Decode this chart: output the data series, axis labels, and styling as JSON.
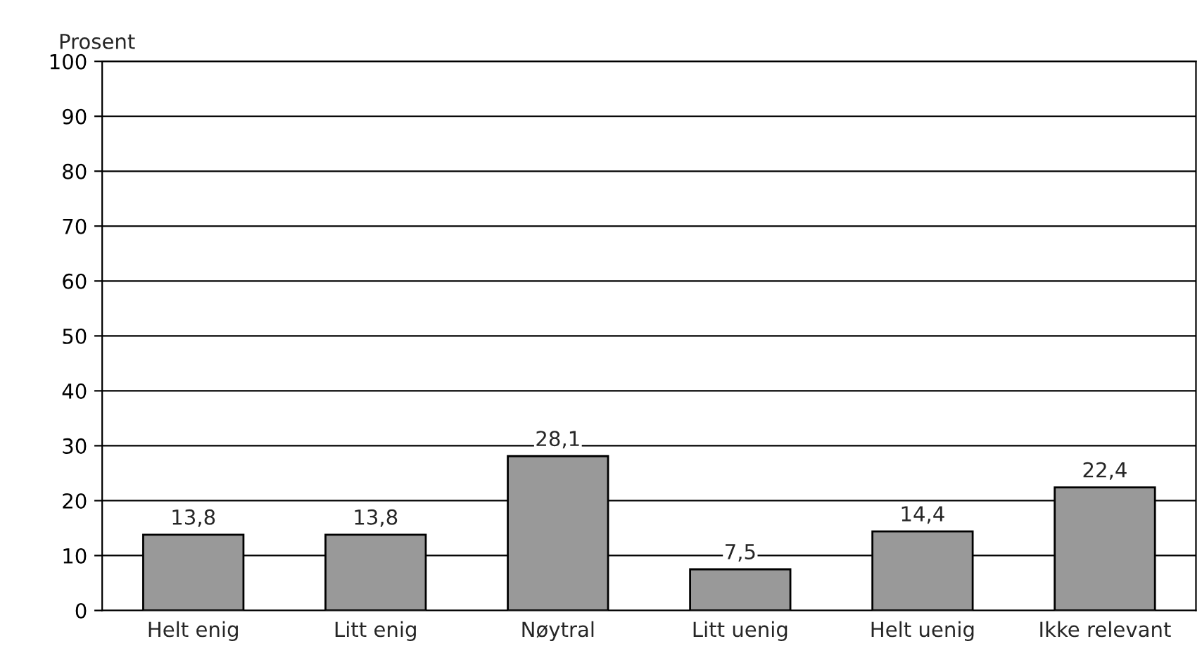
{
  "chart_data": {
    "type": "bar",
    "ylabel": "Prosent",
    "categories": [
      "Helt enig",
      "Litt enig",
      "Nøytral",
      "Litt uenig",
      "Helt uenig",
      "Ikke relevant"
    ],
    "values": [
      13.8,
      13.8,
      28.1,
      7.5,
      14.4,
      22.4
    ],
    "value_labels": [
      "13,8",
      "13,8",
      "28,1",
      "7,5",
      "14,4",
      "22,4"
    ],
    "color": "#999999",
    "ylim": [
      0,
      100
    ],
    "yticks": [
      0,
      10,
      20,
      30,
      40,
      50,
      60,
      70,
      80,
      90,
      100
    ],
    "grid": "y",
    "legend": false
  }
}
